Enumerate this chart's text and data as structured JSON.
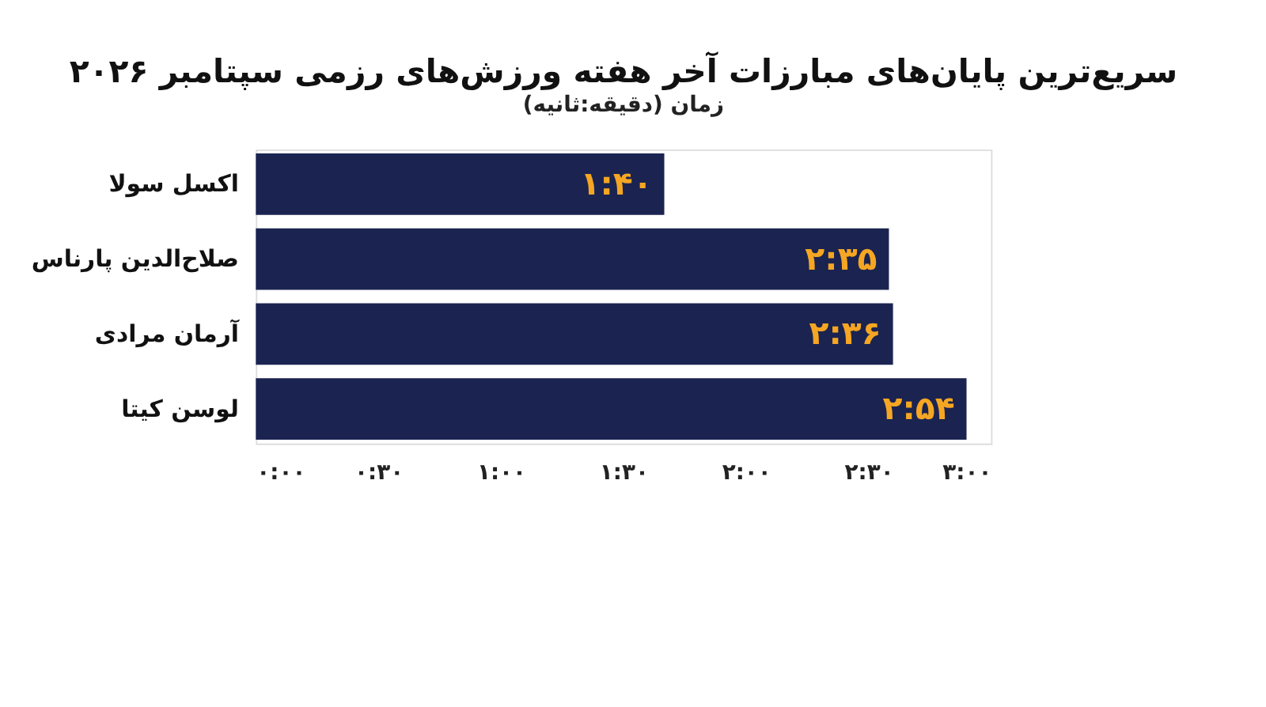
{
  "chart_data": {
    "type": "bar",
    "orientation": "horizontal",
    "title": "سریع‌ترین پایان‌های مبارزات آخر هفته ورزش‌های رزمی سپتامبر ۲۰۲۶",
    "subtitle": "زمان (دقیقه:ثانیه)",
    "categories": [
      "اکسل سولا",
      "صلاح‌الدین پارناس",
      "آرمان مرادی",
      "لوسن کیتا"
    ],
    "values": [
      100,
      155,
      156,
      174
    ],
    "color": "#1b2450",
    "value_labels": [
      "۱:۴۰",
      "۲:۳۵",
      "۲:۳۶",
      "۲:۵۴"
    ],
    "xlim": [
      0,
      180
    ],
    "xticks": [
      {
        "value": 0,
        "label": "۰:۰۰"
      },
      {
        "value": 30,
        "label": "۰:۳۰"
      },
      {
        "value": 60,
        "label": "۱:۰۰"
      },
      {
        "value": 90,
        "label": "۱:۳۰"
      },
      {
        "value": 120,
        "label": "۲:۰۰"
      },
      {
        "value": 150,
        "label": "۲:۳۰"
      },
      {
        "value": 180,
        "label": "۳:۰۰"
      }
    ],
    "grid": false
  }
}
